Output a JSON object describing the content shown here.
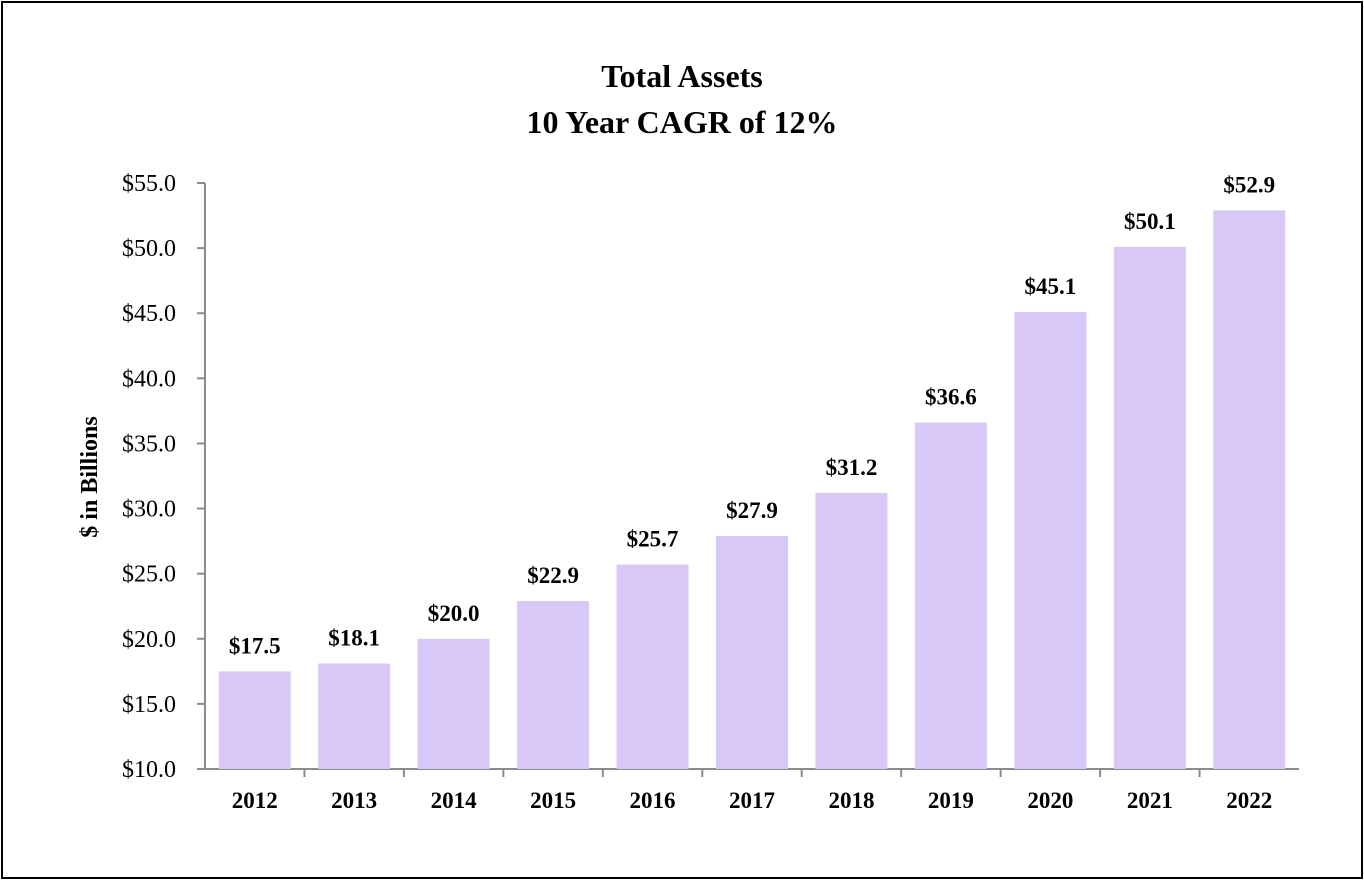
{
  "chart_data": {
    "type": "bar",
    "title": [
      "Total Assets",
      "10 Year CAGR of 12%"
    ],
    "xlabel": "",
    "ylabel": "$ in Billions",
    "categories": [
      "2012",
      "2013",
      "2014",
      "2015",
      "2016",
      "2017",
      "2018",
      "2019",
      "2020",
      "2021",
      "2022"
    ],
    "values": [
      17.5,
      18.1,
      20.0,
      22.9,
      25.7,
      27.9,
      31.2,
      36.6,
      45.1,
      50.1,
      52.9
    ],
    "data_labels": [
      "$17.5",
      "$18.1",
      "$20.0",
      "$22.9",
      "$25.7",
      "$27.9",
      "$31.2",
      "$36.6",
      "$45.1",
      "$50.1",
      "$52.9"
    ],
    "yticks": [
      10,
      15,
      20,
      25,
      30,
      35,
      40,
      45,
      50,
      55
    ],
    "ytick_labels": [
      "$10.0",
      "$15.0",
      "$20.0",
      "$25.0",
      "$30.0",
      "$35.0",
      "$40.0",
      "$45.0",
      "$50.0",
      "$55.0"
    ],
    "ylim": [
      10,
      55
    ],
    "grid": false,
    "legend": "none",
    "colors": {
      "bar": "#d8c8f7",
      "axis": "#8c8c8c",
      "text": "#000000"
    }
  }
}
